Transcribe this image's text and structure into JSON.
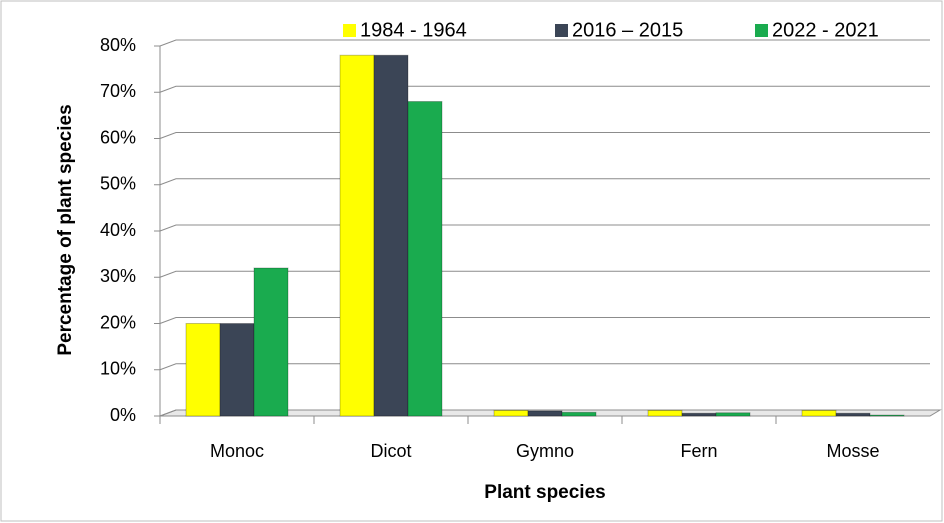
{
  "chart_data": {
    "type": "bar",
    "x_label": "Plant species",
    "y_label": "Percentage of plant species",
    "categories": [
      "Monoc",
      "Dicot",
      "Gymno",
      "Fern",
      "Mosse"
    ],
    "series": [
      {
        "name": "1984 -  1964",
        "color": "#ffff00",
        "values": [
          20,
          78,
          1.2,
          1.2,
          1.2
        ]
      },
      {
        "name": "2016 – 2015",
        "color": "#3b4556",
        "values": [
          20,
          78,
          1.1,
          0.6,
          0.6
        ]
      },
      {
        "name": "2022 - 2021",
        "color": "#1aab4f",
        "values": [
          32,
          68,
          0.8,
          0.7,
          0.2
        ]
      }
    ],
    "ylim": [
      0,
      80
    ],
    "yticks": [
      {
        "value": 0,
        "label": "0%"
      },
      {
        "value": 10,
        "label": "10%"
      },
      {
        "value": 20,
        "label": "20%"
      },
      {
        "value": 30,
        "label": "30%"
      },
      {
        "value": 40,
        "label": "40%"
      },
      {
        "value": 50,
        "label": "50%"
      },
      {
        "value": 60,
        "label": "60%"
      },
      {
        "value": 70,
        "label": "70%"
      },
      {
        "value": 80,
        "label": "80%"
      }
    ],
    "grid": true,
    "legend": "top-right"
  }
}
